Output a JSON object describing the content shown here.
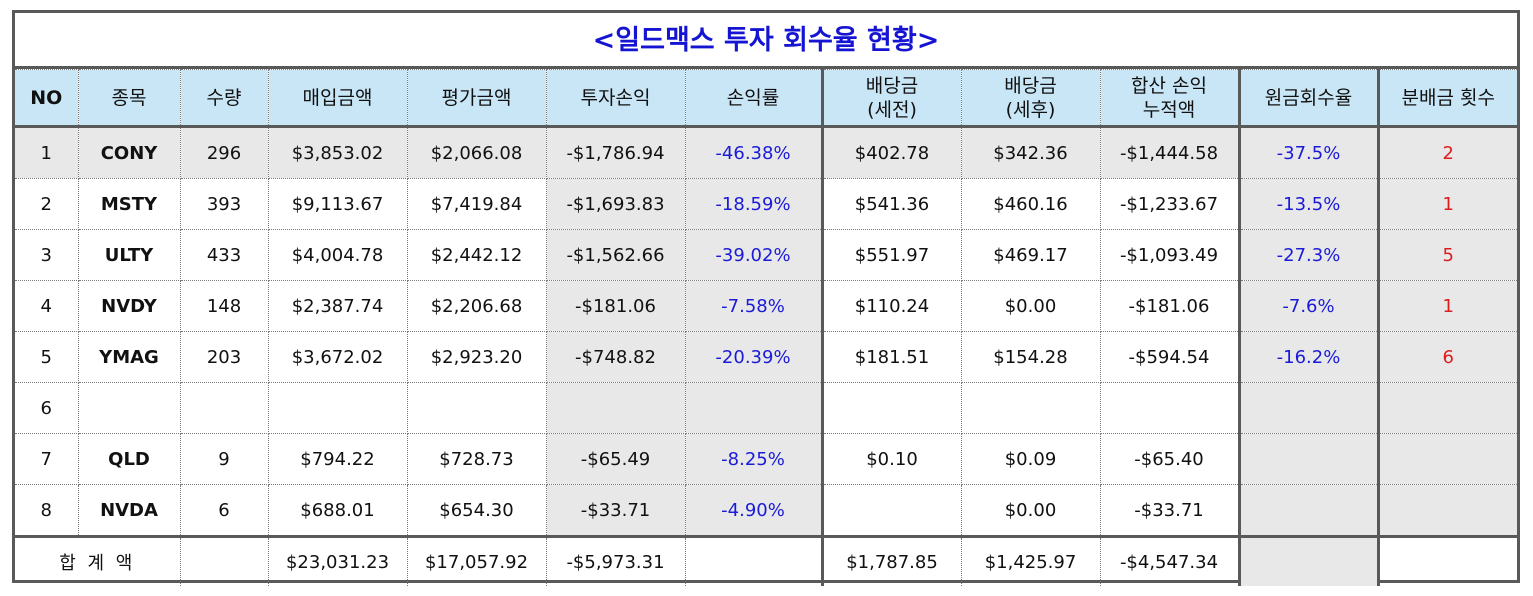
{
  "title": "<일드맥스 투자 회수율 현황>",
  "headers": {
    "no": "NO",
    "stock": "종목",
    "qty": "수량",
    "buy": "매입금액",
    "eval": "평가금액",
    "pl": "투자손익",
    "pl_rate": "손익률",
    "div_pre_1": "배당금",
    "div_pre_2": "(세전)",
    "div_post_1": "배당금",
    "div_post_2": "(세후)",
    "cum_1": "합산 손익",
    "cum_2": "누적액",
    "recovery": "원금회수율",
    "count": "분배금 횟수"
  },
  "rows": [
    {
      "no": "1",
      "stock": "CONY",
      "qty": "296",
      "buy": "$3,853.02",
      "eval": "$2,066.08",
      "pl": "-$1,786.94",
      "pl_rate": "-46.38%",
      "div_pre": "$402.78",
      "div_post": "$342.36",
      "cum": "-$1,444.58",
      "recovery": "-37.5%",
      "count": "2"
    },
    {
      "no": "2",
      "stock": "MSTY",
      "qty": "393",
      "buy": "$9,113.67",
      "eval": "$7,419.84",
      "pl": "-$1,693.83",
      "pl_rate": "-18.59%",
      "div_pre": "$541.36",
      "div_post": "$460.16",
      "cum": "-$1,233.67",
      "recovery": "-13.5%",
      "count": "1"
    },
    {
      "no": "3",
      "stock": "ULTY",
      "qty": "433",
      "buy": "$4,004.78",
      "eval": "$2,442.12",
      "pl": "-$1,562.66",
      "pl_rate": "-39.02%",
      "div_pre": "$551.97",
      "div_post": "$469.17",
      "cum": "-$1,093.49",
      "recovery": "-27.3%",
      "count": "5"
    },
    {
      "no": "4",
      "stock": "NVDY",
      "qty": "148",
      "buy": "$2,387.74",
      "eval": "$2,206.68",
      "pl": "-$181.06",
      "pl_rate": "-7.58%",
      "div_pre": "$110.24",
      "div_post": "$0.00",
      "cum": "-$181.06",
      "recovery": "-7.6%",
      "count": "1"
    },
    {
      "no": "5",
      "stock": "YMAG",
      "qty": "203",
      "buy": "$3,672.02",
      "eval": "$2,923.20",
      "pl": "-$748.82",
      "pl_rate": "-20.39%",
      "div_pre": "$181.51",
      "div_post": "$154.28",
      "cum": "-$594.54",
      "recovery": "-16.2%",
      "count": "6"
    },
    {
      "no": "6",
      "stock": "",
      "qty": "",
      "buy": "",
      "eval": "",
      "pl": "",
      "pl_rate": "",
      "div_pre": "",
      "div_post": "",
      "cum": "",
      "recovery": "",
      "count": ""
    },
    {
      "no": "7",
      "stock": "QLD",
      "qty": "9",
      "buy": "$794.22",
      "eval": "$728.73",
      "pl": "-$65.49",
      "pl_rate": "-8.25%",
      "div_pre": "$0.10",
      "div_post": "$0.09",
      "cum": "-$65.40",
      "recovery": "",
      "count": ""
    },
    {
      "no": "8",
      "stock": "NVDA",
      "qty": "6",
      "buy": "$688.01",
      "eval": "$654.30",
      "pl": "-$33.71",
      "pl_rate": "-4.90%",
      "div_pre": "",
      "div_post": "$0.00",
      "cum": "-$33.71",
      "recovery": "",
      "count": ""
    }
  ],
  "total": {
    "label": "합 계 액",
    "qty": "",
    "buy": "$23,031.23",
    "eval": "$17,057.92",
    "pl": "-$5,973.31",
    "pl_rate": "",
    "div_pre": "$1,787.85",
    "div_post": "$1,425.97",
    "cum": "-$4,547.34",
    "recovery": "",
    "count": ""
  },
  "colors": {
    "title": "#1414d2",
    "header_bg": "#c9e6f6",
    "shaded_bg": "#e8e8e8",
    "rate_text": "#1a1ad8",
    "count_text": "#e01b1b"
  }
}
